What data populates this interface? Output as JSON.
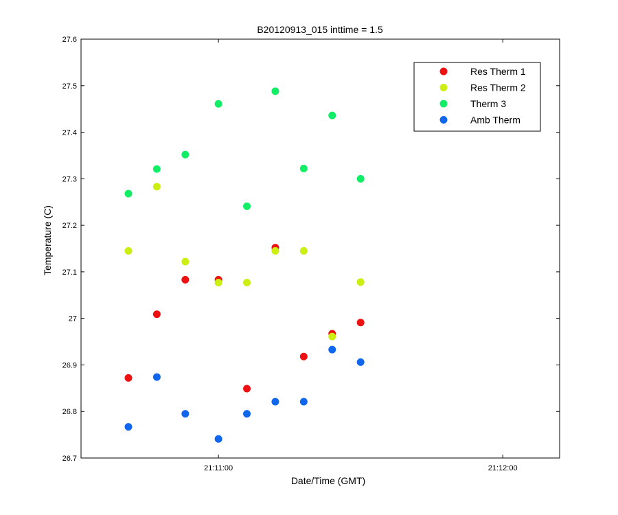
{
  "chart_data": {
    "type": "scatter",
    "title": "B20120913_015 inttime = 1.5",
    "xlabel": "Date/Time (GMT)",
    "ylabel": "Temperature (C)",
    "xlim": [
      "21:10:31",
      "21:12:12"
    ],
    "ylim": [
      26.7,
      27.6
    ],
    "x_ticks": [
      "21:11:00",
      "21:12:00"
    ],
    "y_ticks": [
      "26.7",
      "26.8",
      "26.9",
      "27",
      "27.1",
      "27.2",
      "27.3",
      "27.4",
      "27.5",
      "27.6"
    ],
    "x": [
      "21:10:41",
      "21:10:47",
      "21:10:53",
      "21:11:00",
      "21:11:06",
      "21:11:12",
      "21:11:18",
      "21:11:24",
      "21:11:30"
    ],
    "series": [
      {
        "name": "Res Therm 1",
        "color": "#ee1111",
        "values": [
          26.872,
          27.009,
          27.083,
          27.083,
          26.849,
          27.152,
          26.918,
          26.967,
          26.991
        ]
      },
      {
        "name": "Res Therm 2",
        "color": "#ccee11",
        "values": [
          27.145,
          27.283,
          27.122,
          27.077,
          27.077,
          27.145,
          27.145,
          26.961,
          27.078
        ]
      },
      {
        "name": "Therm 3",
        "color": "#11ee66",
        "values": [
          27.268,
          27.321,
          27.352,
          27.461,
          27.241,
          27.488,
          27.322,
          27.436,
          27.3
        ]
      },
      {
        "name": "Amb Therm",
        "color": "#1166ee",
        "values": [
          26.767,
          26.874,
          26.795,
          26.741,
          26.795,
          26.821,
          26.821,
          26.933,
          26.906
        ]
      }
    ],
    "grid": false,
    "legend_position": "top-right",
    "marker": "filled-circle"
  }
}
